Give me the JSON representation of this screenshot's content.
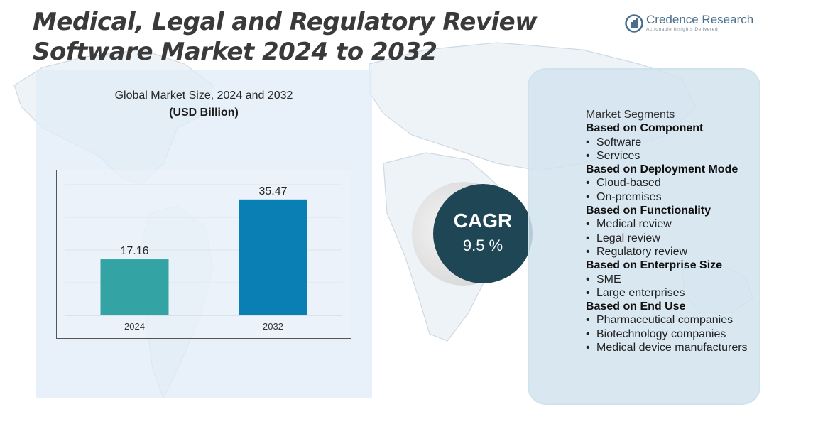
{
  "title": "Medical, Legal and Regulatory Review Software Market 2024 to 2032",
  "logo": {
    "name": "Credence Research",
    "tagline": "Actionable Insights Delivered"
  },
  "chart": {
    "title": "Global Market Size,  2024 and 2032",
    "unit": "(USD Billion)"
  },
  "chart_data": {
    "type": "bar",
    "title": "Global Market Size,  2024 and 2032",
    "subtitle": "(USD Billion)",
    "categories": [
      "2024",
      "2032"
    ],
    "values": [
      17.16,
      35.47
    ],
    "value_labels": [
      "17.16",
      "35.47"
    ],
    "colors": [
      "#33a3a3",
      "#0a7fb3"
    ],
    "ylim": [
      0,
      40
    ],
    "grid": true,
    "legend": "none"
  },
  "cagr": {
    "label": "CAGR",
    "value": "9.5 %"
  },
  "segments": {
    "heading": "Market Segments",
    "groups": [
      {
        "title": "Based on Component",
        "items": [
          "Software",
          "Services"
        ]
      },
      {
        "title": "Based on Deployment Mode",
        "items": [
          "Cloud-based",
          "On-premises"
        ]
      },
      {
        "title": "Based on Functionality",
        "items": [
          "Medical review",
          "Legal review",
          "Regulatory review"
        ]
      },
      {
        "title": "Based on Enterprise Size",
        "items": [
          "SME",
          "Large enterprises"
        ]
      },
      {
        "title": "Based on End Use",
        "items": [
          "Pharmaceutical companies",
          "Biotechnology companies",
          "Medical device manufacturers"
        ]
      }
    ]
  },
  "theme": {
    "bullet": "•",
    "logo_color": "#4a6f8c",
    "cagr_bg": "#1f4654"
  }
}
